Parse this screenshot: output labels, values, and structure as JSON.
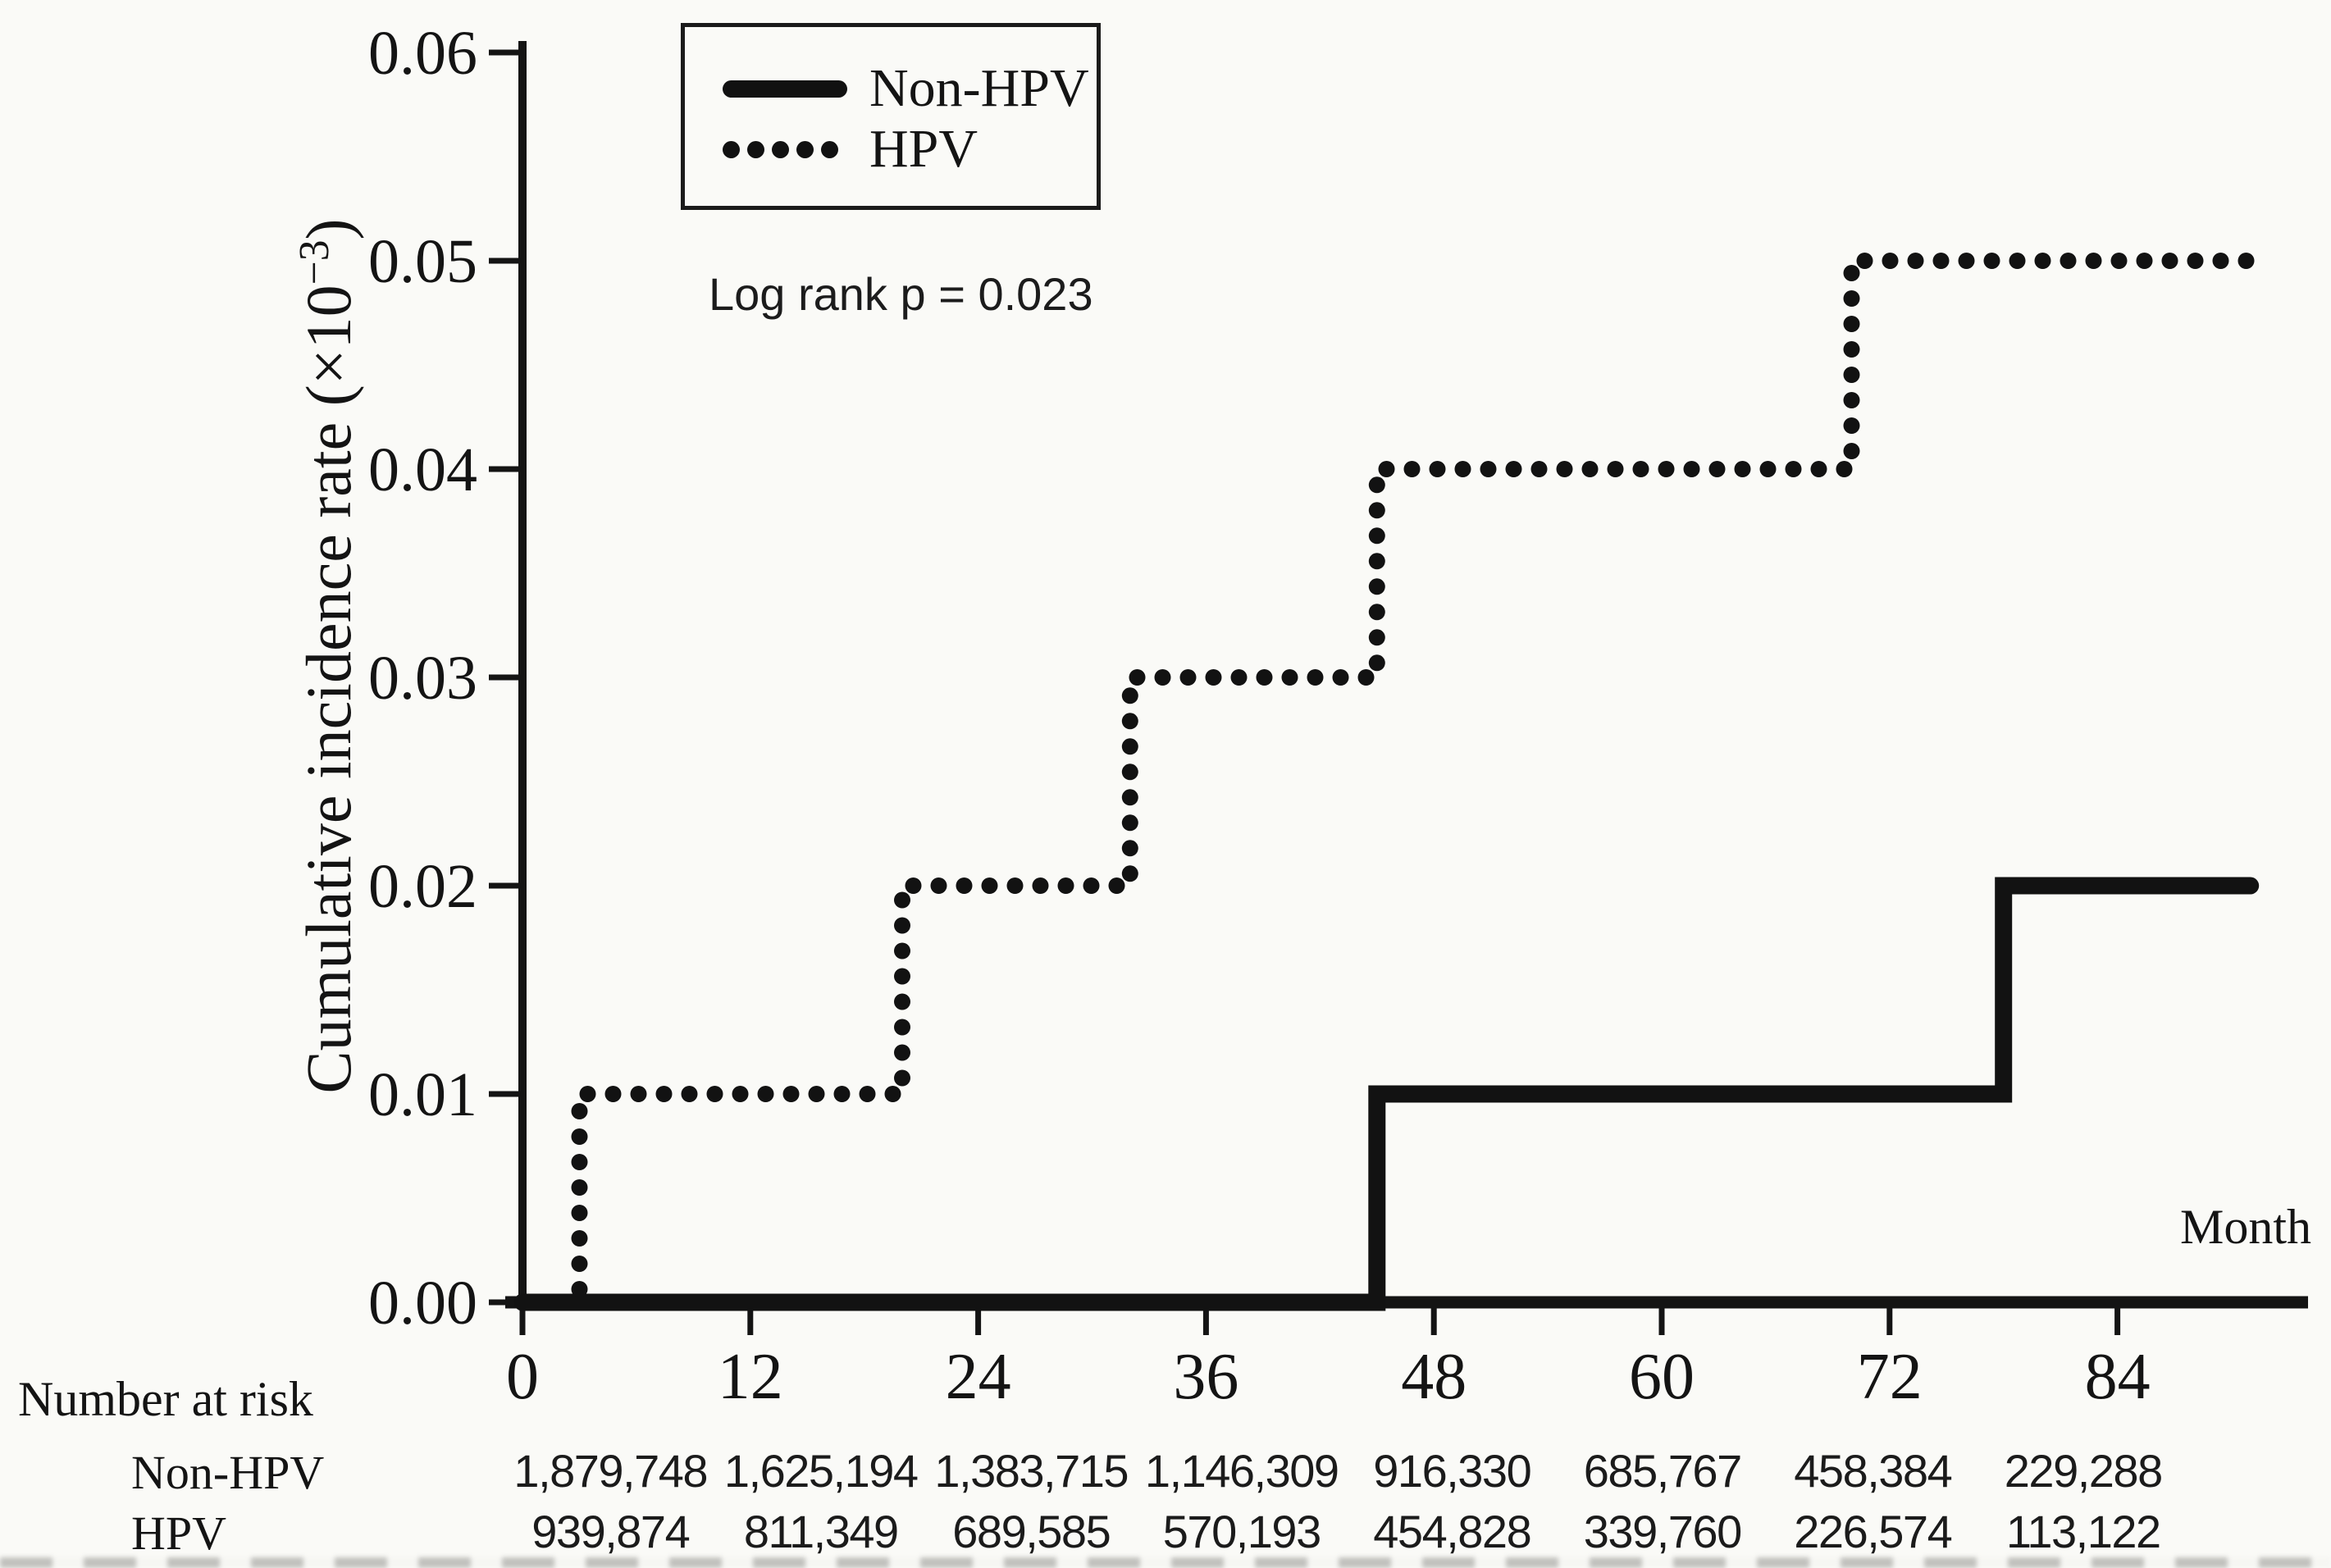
{
  "figure": {
    "annotation_logrank": "Log rank p = 0.023",
    "x_axis_title": "Month",
    "y_axis_title_prefix": "Cumulative incidence rate (×10",
    "y_axis_title_sup": "−3",
    "y_axis_title_suffix": ")"
  },
  "legend": {
    "items": [
      {
        "label": "Non-HPV",
        "style": "solid"
      },
      {
        "label": "HPV",
        "style": "dotted"
      }
    ]
  },
  "chart_data": {
    "type": "line",
    "subtype": "step-function-cumulative-incidence",
    "title": "",
    "xlabel": "Month",
    "ylabel": "Cumulative incidence rate (×10⁻³)",
    "xlim": [
      0,
      94
    ],
    "ylim": [
      0,
      0.06
    ],
    "xticks": [
      0,
      12,
      24,
      36,
      48,
      60,
      72,
      84
    ],
    "yticks": [
      "0.00",
      "0.01",
      "0.02",
      "0.03",
      "0.04",
      "0.05",
      "0.06"
    ],
    "grid": false,
    "legend_position": "upper-left-inside",
    "annotation": "Log rank p = 0.023",
    "line_color": "#121212",
    "series": [
      {
        "name": "Non-HPV",
        "style": "solid",
        "start_x": 0,
        "start_y": 0,
        "rises": [
          {
            "x": 45,
            "y": 0.01
          },
          {
            "x": 78,
            "y": 0.02
          }
        ],
        "end_x": 91
      },
      {
        "name": "HPV",
        "style": "dotted",
        "start_x": 3,
        "start_y": 0,
        "rises": [
          {
            "x": 3,
            "y": 0.01
          },
          {
            "x": 20,
            "y": 0.02
          },
          {
            "x": 32,
            "y": 0.03
          },
          {
            "x": 45,
            "y": 0.04
          },
          {
            "x": 70,
            "y": 0.05
          }
        ],
        "end_x": 91
      }
    ]
  },
  "risk_table": {
    "title": "Number at risk",
    "rows": [
      {
        "label": "Non-HPV",
        "values": [
          "1,879,748",
          "1,625,194",
          "1,383,715",
          "1,146,309",
          "916,330",
          "685,767",
          "458,384",
          "229,288"
        ]
      },
      {
        "label": "HPV",
        "values": [
          "939,874",
          "811,349",
          "689,585",
          "570,193",
          "454,828",
          "339,760",
          "226,574",
          "113,122"
        ]
      }
    ]
  }
}
